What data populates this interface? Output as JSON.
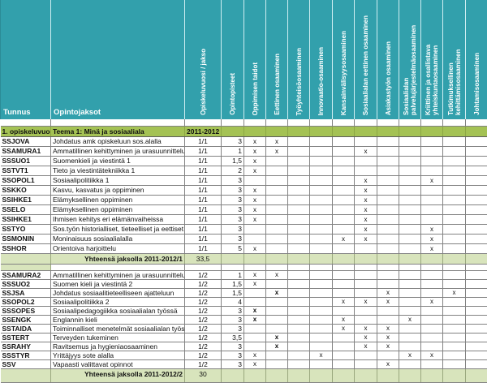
{
  "colors": {
    "header_teal": "#32A0AC",
    "section_olive": "#A4C254",
    "total_green": "#D8E4BC",
    "grid_border": "#828282",
    "header_text": "#FFFFFF"
  },
  "table": {
    "corner_headers": [
      {
        "label": "Tunnus"
      },
      {
        "label": "Opintojaksot"
      }
    ],
    "rotated_headers": [
      {
        "label": "Opiskeluvuosi / jakso"
      },
      {
        "label": "Opintopisteet"
      },
      {
        "label": "Oppimisen taidot"
      },
      {
        "label": "Eettinen osaaminen"
      },
      {
        "label": "Työyhteisöosaaminen"
      },
      {
        "label": "Innovaatio-osaaminen"
      },
      {
        "label": "Kansainvälisyysosaaminen"
      },
      {
        "label": "Sosiaalialan eettinen osaaminen"
      },
      {
        "label": "Asiakastyön osaaminen"
      },
      {
        "label": "Sosiaalialan palvelujärjestelmäosaaminen"
      },
      {
        "label": "Kriittinen ja osallistava yhteiskuntaosaaminen"
      },
      {
        "label": "Tutkimuksellinen kehittämisosaaminen"
      },
      {
        "label": "Johtamisosaaminen"
      }
    ],
    "section": {
      "year_label": "1. opiskeluvuosi",
      "theme_label": "Teema 1: Minä ja sosiaaliala",
      "period_label": "2011-2012"
    },
    "block1": {
      "rows": [
        {
          "code": "SSJOVA",
          "name": "Johdatus amk opiskeluun sos.alalla",
          "period": "1/1",
          "credits": "3",
          "marks": [
            "x",
            "x",
            "",
            "",
            "",
            "",
            "",
            "",
            "",
            "",
            ""
          ]
        },
        {
          "code": "SSAMURA1",
          "name": "Ammatillinen kehittyminen ja urasuunnittelu",
          "period": "1/1",
          "credits": "1",
          "marks": [
            "x",
            "x",
            "",
            "",
            "",
            "x",
            "",
            "",
            "",
            "",
            ""
          ]
        },
        {
          "code": "SSSUO1",
          "name": "Suomenkieli ja viestintä 1",
          "period": "1/1",
          "credits": "1,5",
          "marks": [
            "x",
            "",
            "",
            "",
            "",
            "",
            "",
            "",
            "",
            "",
            ""
          ]
        },
        {
          "code": "SSTVT1",
          "name": "Tieto ja viestintätekniikka 1",
          "period": "1/1",
          "credits": "2",
          "marks": [
            "x",
            "",
            "",
            "",
            "",
            "",
            "",
            "",
            "",
            "",
            ""
          ]
        },
        {
          "code": "SSOPOL1",
          "name": "Sosiaalipolitiikka 1",
          "period": "1/1",
          "credits": "3",
          "marks": [
            "",
            "",
            "",
            "",
            "",
            "x",
            "",
            "",
            "x",
            "",
            ""
          ]
        },
        {
          "code": "SSKKO",
          "name": "Kasvu, kasvatus ja oppiminen",
          "period": "1/1",
          "credits": "3",
          "marks": [
            "x",
            "",
            "",
            "",
            "",
            "x",
            "",
            "",
            "",
            "",
            ""
          ]
        },
        {
          "code": "SSIHKE1",
          "name": "Elämyksellinen oppiminen",
          "period": "1/1",
          "credits": "3",
          "marks": [
            "x",
            "",
            "",
            "",
            "",
            "x",
            "",
            "",
            "",
            "",
            ""
          ]
        },
        {
          "code": "SSELO",
          "name": "Elämyksellinen oppiminen",
          "period": "1/1",
          "credits": "3",
          "marks": [
            "x",
            "",
            "",
            "",
            "",
            "x",
            "",
            "",
            "",
            "",
            ""
          ]
        },
        {
          "code": "SSIHKE1",
          "name": "Ihmisen kehitys eri elämänvaiheissa",
          "period": "1/1",
          "credits": "3",
          "marks": [
            "x",
            "",
            "",
            "",
            "",
            "x",
            "",
            "",
            "",
            "",
            ""
          ]
        },
        {
          "code": "SSTYO",
          "name": "Sos.työn historialliset, tieteelliset ja eettiset läh",
          "period": "1/1",
          "credits": "3",
          "marks": [
            "",
            "",
            "",
            "",
            "",
            "x",
            "",
            "",
            "x",
            "",
            ""
          ]
        },
        {
          "code": "SSMONIN",
          "name": "Moninaisuus sosiaalialalla",
          "period": "1/1",
          "credits": "3",
          "marks": [
            "",
            "",
            "",
            "",
            "x",
            "x",
            "",
            "",
            "x",
            "",
            ""
          ]
        },
        {
          "code": "SSHOR",
          "name": "Orientoiva harjoittelu",
          "period": "1/1",
          "credits": "5",
          "marks": [
            "x",
            "",
            "",
            "",
            "",
            "",
            "",
            "",
            "x",
            "",
            ""
          ]
        }
      ],
      "total_label": "Yhteensä jaksolla 2011-2012/1",
      "total_value": "33,5"
    },
    "block2": {
      "rows": [
        {
          "code": "SSAMURA2",
          "name": "Ammatillinen kehittyminen ja urasuunnittelu2",
          "period": "1/2",
          "credits": "1",
          "marks": [
            "x",
            "x",
            "",
            "",
            "",
            "",
            "",
            "",
            "",
            "",
            ""
          ]
        },
        {
          "code": "SSSUO2",
          "name": "Suomen kieli ja viestintä 2",
          "period": "1/2",
          "credits": "1,5",
          "marks": [
            "x",
            "",
            "",
            "",
            "",
            "",
            "",
            "",
            "",
            "",
            ""
          ]
        },
        {
          "code": "SSJSA",
          "name": "Johdatus sosiaalitieteelliseen ajatteluun",
          "period": "1/2",
          "credits": "1,5",
          "marks": [
            "",
            "X",
            "",
            "",
            "",
            "",
            "x",
            "",
            "",
            "x",
            ""
          ]
        },
        {
          "code": "SSOPOL2",
          "name": "Sosiaalipolitiikka 2",
          "period": "1/2",
          "credits": "4",
          "marks": [
            "",
            "",
            "",
            "",
            "x",
            "x",
            "x",
            "",
            "x",
            "",
            ""
          ]
        },
        {
          "code": "SSSOPES",
          "name": "Sosiaalipedagogiikka sosiaalialan työssä",
          "period": "1/2",
          "credits": "3",
          "marks": [
            "X",
            "",
            "",
            "",
            "",
            "",
            "",
            "",
            "",
            "",
            ""
          ]
        },
        {
          "code": "SSENGK",
          "name": "Englannin kieli",
          "period": "1/2",
          "credits": "3",
          "marks": [
            "X",
            "",
            "",
            "",
            "x",
            "",
            "",
            "x",
            "",
            "",
            ""
          ]
        },
        {
          "code": "SSTAIDA",
          "name": "Toiminnalliset menetelmät sosiaalialan työssä",
          "period": "1/2",
          "credits": "3",
          "marks": [
            "",
            "",
            "",
            "",
            "x",
            "x",
            "x",
            "",
            "",
            "",
            ""
          ]
        },
        {
          "code": "SSTERT",
          "name": "Terveyden tukeminen",
          "period": "1/2",
          "credits": "3,5",
          "marks": [
            "",
            "X",
            "",
            "",
            "",
            "x",
            "x",
            "",
            "",
            "",
            ""
          ]
        },
        {
          "code": "SSRAHY",
          "name": "Ravitsemus ja hygieniaosaaminen",
          "period": "1/2",
          "credits": "3",
          "marks": [
            "",
            "X",
            "",
            "",
            "",
            "x",
            "x",
            "",
            "",
            "",
            ""
          ]
        },
        {
          "code": "SSSTYR",
          "name": "Yrittäjyys sote alalla",
          "period": "1/2",
          "credits": "3",
          "marks": [
            "x",
            "",
            "",
            "x",
            "",
            "",
            "",
            "x",
            "x",
            "",
            ""
          ]
        },
        {
          "code": "SSV",
          "name": "Vapaasti valittavat opinnot",
          "period": "1/2",
          "credits": "3",
          "marks": [
            "x",
            "",
            "",
            "",
            "",
            "",
            "x",
            "",
            "",
            "",
            ""
          ]
        }
      ],
      "total_label": "Yhteensä jaksolla 2011-2012/2",
      "total_value": "30"
    }
  }
}
